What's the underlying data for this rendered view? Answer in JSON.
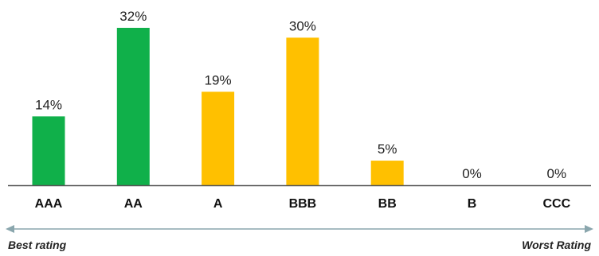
{
  "chart_data": {
    "type": "bar",
    "categories": [
      "AAA",
      "AA",
      "A",
      "BBB",
      "BB",
      "B",
      "CCC"
    ],
    "values": [
      14,
      32,
      19,
      30,
      5,
      0,
      0
    ],
    "data_labels": [
      "14%",
      "32%",
      "19%",
      "30%",
      "5%",
      "0%",
      "0%"
    ],
    "unit": "%",
    "ylim": [
      0,
      32
    ],
    "colors": [
      "#10b04a",
      "#10b04a",
      "#ffc000",
      "#ffc000",
      "#ffc000",
      "#ffc000",
      "#ffc000"
    ],
    "axis_color": "#555555",
    "arrow_color": "#8aa6ad",
    "title": "",
    "xlabel": "",
    "ylabel": ""
  },
  "scale": {
    "best_label": "Best rating",
    "worst_label": "Worst Rating"
  }
}
